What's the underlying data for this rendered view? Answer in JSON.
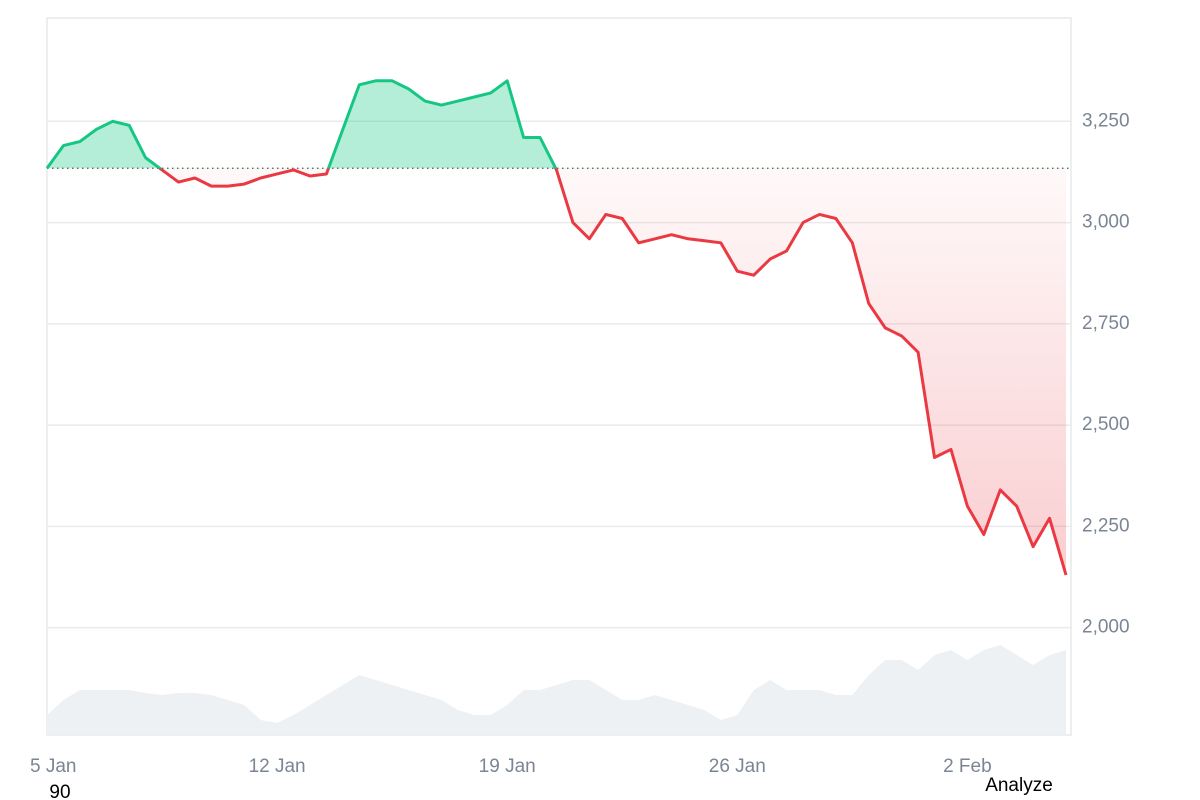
{
  "chart_data": {
    "type": "baseline",
    "categories": [
      "5 Jan",
      null,
      null,
      null,
      null,
      null,
      null,
      null,
      null,
      null,
      null,
      null,
      null,
      null,
      "12 Jan",
      null,
      null,
      null,
      null,
      null,
      null,
      null,
      null,
      null,
      null,
      null,
      null,
      null,
      "19 Jan",
      null,
      null,
      null,
      null,
      null,
      null,
      null,
      null,
      null,
      null,
      null,
      null,
      null,
      "26 Jan",
      null,
      null,
      null,
      null,
      null,
      null,
      null,
      null,
      null,
      null,
      null,
      null,
      null,
      "2 Feb",
      null,
      null,
      null,
      null,
      null,
      null
    ],
    "values": [
      3134,
      3190,
      3200,
      3230,
      3250,
      3240,
      3160,
      3130,
      3100,
      3110,
      3090,
      3090,
      3095,
      3110,
      3120,
      3130,
      3115,
      3120,
      3230,
      3340,
      3350,
      3350,
      3330,
      3300,
      3290,
      3300,
      3310,
      3320,
      3350,
      3210,
      3210,
      3130,
      3000,
      2960,
      3020,
      3010,
      2950,
      2960,
      2970,
      2960,
      2955,
      2950,
      2880,
      2870,
      2910,
      2930,
      3000,
      3020,
      3010,
      2950,
      2800,
      2740,
      2720,
      2680,
      2420,
      2440,
      2300,
      2230,
      2340,
      2300,
      2200,
      2270,
      2130
    ],
    "baseline": 3134,
    "up_color": "#16c784",
    "down_color": "#ea3943",
    "ylim": [
      1735,
      3505
    ],
    "yticks": [
      {
        "value": 2000,
        "label": "2,000"
      },
      {
        "value": 2250,
        "label": "2,250"
      },
      {
        "value": 2500,
        "label": "2,500"
      },
      {
        "value": 2750,
        "label": "2,750"
      },
      {
        "value": 3000,
        "label": "3,000"
      },
      {
        "value": 3250,
        "label": "3,250"
      }
    ],
    "grid": true,
    "volume": [
      20,
      35,
      45,
      45,
      45,
      45,
      42,
      40,
      42,
      42,
      40,
      35,
      30,
      15,
      12,
      20,
      30,
      40,
      50,
      60,
      55,
      50,
      45,
      40,
      35,
      25,
      20,
      20,
      30,
      45,
      45,
      50,
      55,
      55,
      45,
      35,
      35,
      40,
      35,
      30,
      25,
      15,
      20,
      45,
      55,
      45,
      45,
      45,
      40,
      40,
      60,
      75,
      75,
      65,
      80,
      85,
      75,
      85,
      90,
      80,
      70,
      80,
      85
    ],
    "volume_ylim": [
      0,
      100
    ],
    "volume_color": "#eef1f4"
  },
  "footer": {
    "left": "90",
    "button": "Analyze"
  }
}
